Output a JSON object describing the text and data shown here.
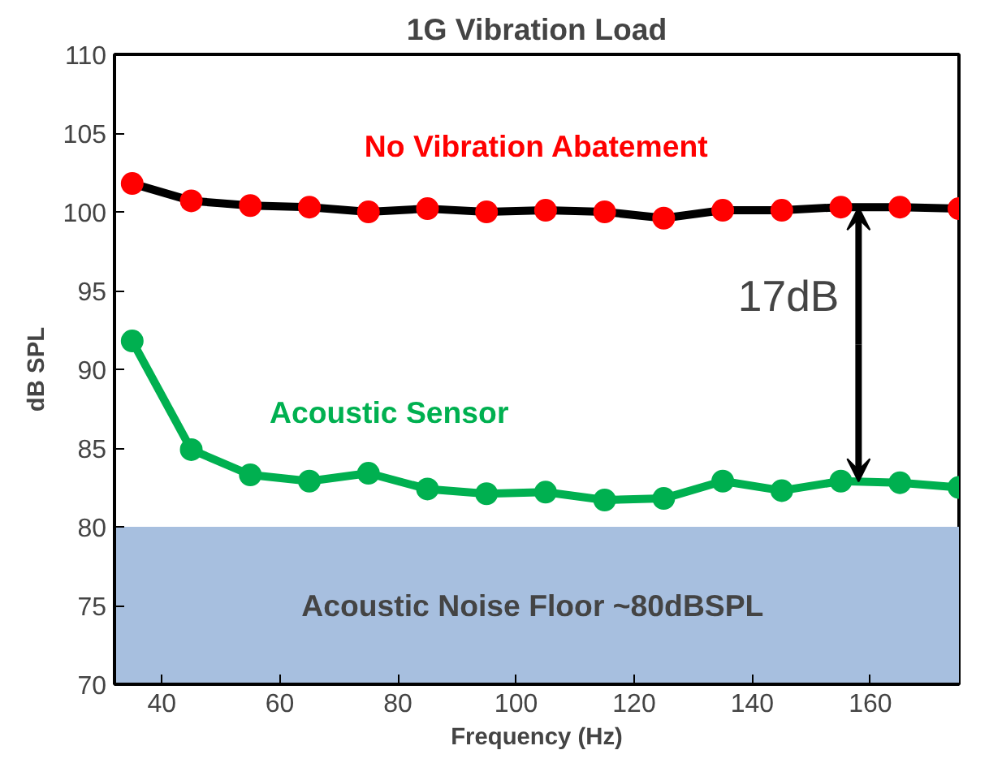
{
  "chart_data": {
    "type": "line",
    "title": "1G Vibration Load",
    "xlabel": "Frequency (Hz)",
    "ylabel": "dB SPL",
    "x": [
      35,
      45,
      55,
      65,
      75,
      85,
      95,
      105,
      115,
      125,
      135,
      145,
      155,
      165,
      175
    ],
    "series": [
      {
        "name": "No Vibration Abatement",
        "color": "#000000",
        "colors": [
          "#ff0000",
          "#ff0000",
          "#ff0000",
          "#ff0000",
          "#ff0000",
          "#ff0000",
          "#ff0000",
          "#ff0000",
          "#ff0000",
          "#ff0000",
          "#ff0000",
          "#ff0000",
          "#ff0000",
          "#ff0000",
          "#ff0000"
        ],
        "values": [
          101.8,
          100.7,
          100.4,
          100.3,
          100.0,
          100.2,
          100.0,
          100.1,
          100.0,
          99.6,
          100.1,
          100.1,
          100.3,
          100.3,
          100.2
        ]
      },
      {
        "name": "Acoustic Sensor",
        "color": "#00b050",
        "values": [
          91.8,
          84.9,
          83.3,
          82.9,
          83.4,
          82.4,
          82.1,
          82.2,
          81.7,
          81.8,
          82.9,
          82.3,
          82.9,
          82.8,
          82.5
        ]
      }
    ],
    "xlim": [
      32,
      175
    ],
    "ylim": [
      70,
      110
    ],
    "xticks": [
      40,
      60,
      80,
      100,
      120,
      140,
      160
    ],
    "yticks": [
      70,
      75,
      80,
      85,
      90,
      95,
      100,
      105,
      110
    ],
    "bands": [
      {
        "axis": "y",
        "from": 70,
        "to": 80,
        "label": "Acoustic Noise Floor  ~80dBSPL",
        "color": "#a7bfdf"
      }
    ],
    "annotations": [
      {
        "text": "17dB",
        "x": 158,
        "y": 100.3
      }
    ],
    "marker": "circle",
    "grid": false
  }
}
